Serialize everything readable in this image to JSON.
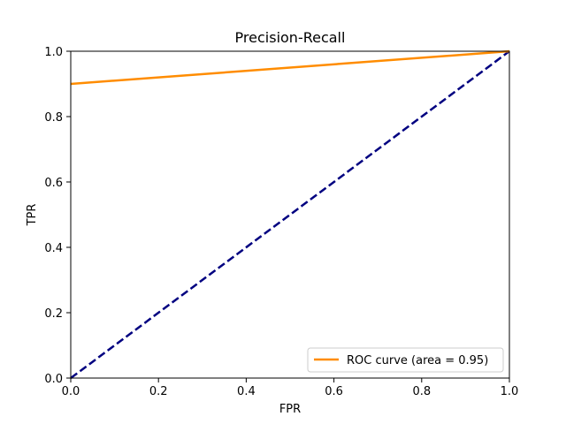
{
  "chart_data": {
    "type": "line",
    "title": "Precision-Recall",
    "xlabel": "FPR",
    "ylabel": "TPR",
    "xlim": [
      0,
      1
    ],
    "ylim": [
      0,
      1
    ],
    "xticks": [
      "0.0",
      "0.2",
      "0.4",
      "0.6",
      "0.8",
      "1.0"
    ],
    "yticks": [
      "0.0",
      "0.2",
      "0.4",
      "0.6",
      "0.8",
      "1.0"
    ],
    "grid": false,
    "legend_position": "lower-right",
    "series": [
      {
        "name": "ROC curve (area = 0.95)",
        "color": "#ff8c00",
        "dash": "solid",
        "x": [
          0,
          1
        ],
        "y": [
          0.9,
          1
        ]
      },
      {
        "color": "#000080",
        "dash": "dashed",
        "x": [
          0,
          1
        ],
        "y": [
          0,
          1
        ]
      }
    ]
  }
}
